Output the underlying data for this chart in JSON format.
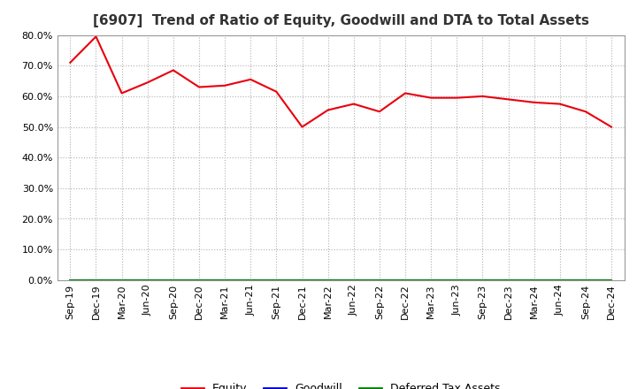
{
  "title": "[6907]  Trend of Ratio of Equity, Goodwill and DTA to Total Assets",
  "x_labels": [
    "Sep-19",
    "Dec-19",
    "Mar-20",
    "Jun-20",
    "Sep-20",
    "Dec-20",
    "Mar-21",
    "Jun-21",
    "Sep-21",
    "Dec-21",
    "Mar-22",
    "Jun-22",
    "Sep-22",
    "Dec-22",
    "Mar-23",
    "Jun-23",
    "Sep-23",
    "Dec-23",
    "Mar-24",
    "Jun-24",
    "Sep-24",
    "Dec-24"
  ],
  "equity": [
    0.71,
    0.795,
    0.61,
    0.645,
    0.685,
    0.63,
    0.635,
    0.655,
    0.615,
    0.5,
    0.555,
    0.575,
    0.55,
    0.61,
    0.595,
    0.595,
    0.6,
    0.59,
    0.58,
    0.575,
    0.55,
    0.5
  ],
  "goodwill": [
    0.0,
    0.0,
    0.0,
    0.0,
    0.0,
    0.0,
    0.0,
    0.0,
    0.0,
    0.0,
    0.0,
    0.0,
    0.0,
    0.0,
    0.0,
    0.0,
    0.0,
    0.0,
    0.0,
    0.0,
    0.0,
    0.0
  ],
  "dta": [
    0.0,
    0.0,
    0.0,
    0.0,
    0.0,
    0.0,
    0.0,
    0.0,
    0.0,
    0.0,
    0.0,
    0.0,
    0.0,
    0.0,
    0.0,
    0.0,
    0.0,
    0.0,
    0.0,
    0.0,
    0.0,
    0.0
  ],
  "equity_color": "#e8000d",
  "goodwill_color": "#0000cd",
  "dta_color": "#008000",
  "ylim": [
    0.0,
    0.8
  ],
  "yticks": [
    0.0,
    0.1,
    0.2,
    0.3,
    0.4,
    0.5,
    0.6,
    0.7,
    0.8
  ],
  "background_color": "#ffffff",
  "plot_bg_color": "#ffffff",
  "grid_color": "#b0b0b0",
  "title_fontsize": 11,
  "tick_fontsize": 8,
  "legend_labels": [
    "Equity",
    "Goodwill",
    "Deferred Tax Assets"
  ]
}
